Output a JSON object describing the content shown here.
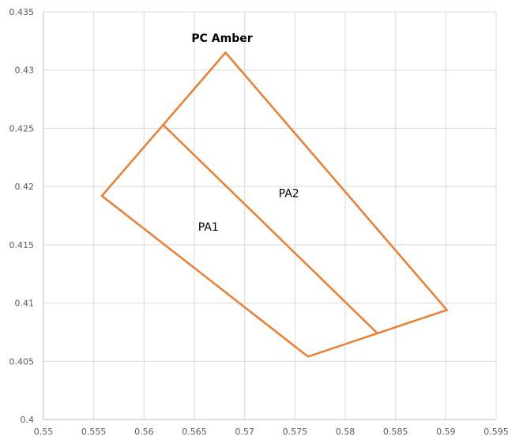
{
  "chart_data": {
    "type": "scatter",
    "title": "PC Amber",
    "xlim": [
      0.55,
      0.595
    ],
    "ylim": [
      0.4,
      0.435
    ],
    "x_ticks": [
      "0.55",
      "0.555",
      "0.56",
      "0.565",
      "0.57",
      "0.575",
      "0.58",
      "0.585",
      "0.59",
      "0.595"
    ],
    "y_ticks": [
      "0.4",
      "0.405",
      "0.41",
      "0.415",
      "0.42",
      "0.425",
      "0.43",
      "0.435"
    ],
    "grid": true,
    "line_color": "#ed7d31",
    "series": [
      {
        "points": [
          {
            "x": 0.5558,
            "y": 0.4192
          },
          {
            "x": 0.5681,
            "y": 0.4315
          },
          {
            "x": 0.5901,
            "y": 0.4094
          },
          {
            "x": 0.5763,
            "y": 0.4054
          },
          {
            "x": 0.5558,
            "y": 0.4192
          }
        ]
      },
      {
        "points": [
          {
            "x": 0.5619,
            "y": 0.4253
          },
          {
            "x": 0.5832,
            "y": 0.4074
          }
        ]
      }
    ],
    "annotations": [
      {
        "text": "PA1",
        "x": 0.5664,
        "y": 0.4162
      },
      {
        "text": "PA2",
        "x": 0.5744,
        "y": 0.4191
      }
    ]
  }
}
